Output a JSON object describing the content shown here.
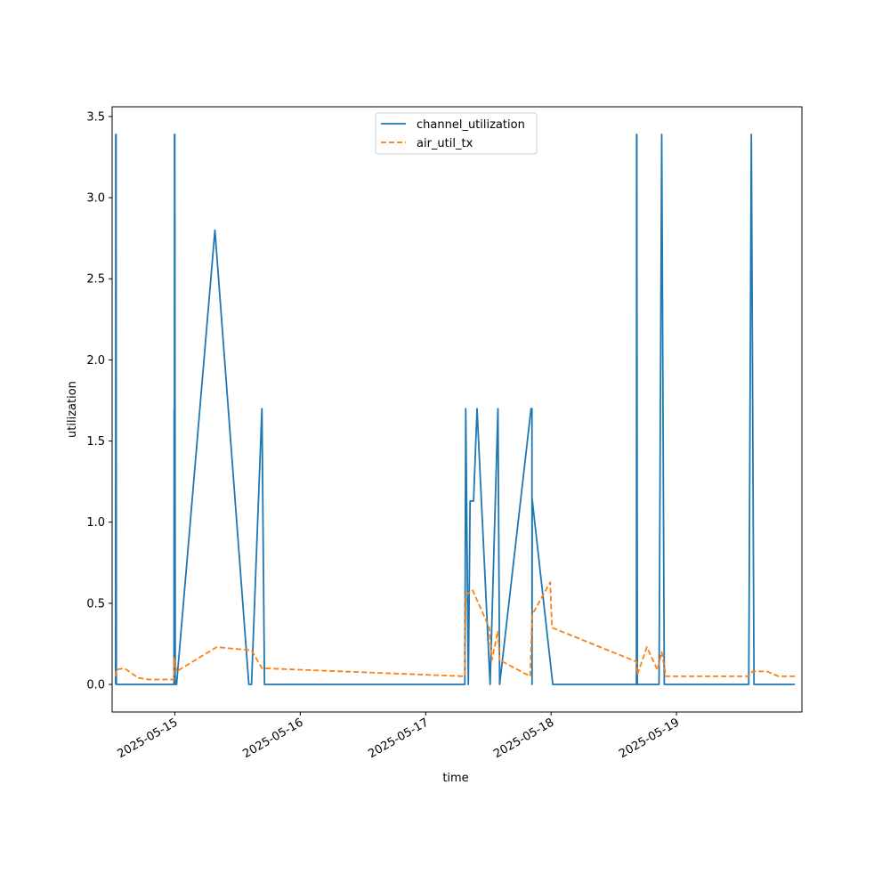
{
  "chart_data": {
    "type": "line",
    "xlabel": "time",
    "ylabel": "utilization",
    "xlim": [
      "2025-05-14 12:00",
      "2025-05-20 00:00"
    ],
    "ylim": [
      -0.17,
      3.56
    ],
    "x_ticks": [
      "2025-05-15",
      "2025-05-16",
      "2025-05-17",
      "2025-05-18",
      "2025-05-19"
    ],
    "y_ticks": [
      0.0,
      0.5,
      1.0,
      1.5,
      2.0,
      2.5,
      3.0,
      3.5
    ],
    "y_tick_labels": [
      "0.0",
      "0.5",
      "1.0",
      "1.5",
      "2.0",
      "2.5",
      "3.0",
      "3.5"
    ],
    "legend_position": "top-center",
    "grid": false,
    "series": [
      {
        "name": "channel_utilization",
        "color": "#1f77b4",
        "dash": "solid",
        "points": [
          [
            "2025-05-14 12:40",
            0.0
          ],
          [
            "2025-05-14 12:42",
            3.39
          ],
          [
            "2025-05-14 12:45",
            3.39
          ],
          [
            "2025-05-14 12:48",
            0.0
          ],
          [
            "2025-05-14 23:50",
            0.0
          ],
          [
            "2025-05-14 23:52",
            1.7
          ],
          [
            "2025-05-14 23:54",
            0.0
          ],
          [
            "2025-05-14 23:56",
            3.39
          ],
          [
            "2025-05-14 23:59",
            3.39
          ],
          [
            "2025-05-15 00:05",
            0.0
          ],
          [
            "2025-05-15 00:20",
            0.0
          ],
          [
            "2025-05-15 07:40",
            2.8
          ],
          [
            "2025-05-15 14:10",
            0.0
          ],
          [
            "2025-05-15 14:40",
            0.0
          ],
          [
            "2025-05-15 16:40",
            1.7
          ],
          [
            "2025-05-15 17:10",
            0.0
          ],
          [
            "2025-05-17 07:30",
            0.0
          ],
          [
            "2025-05-17 07:40",
            1.7
          ],
          [
            "2025-05-17 08:10",
            0.0
          ],
          [
            "2025-05-17 08:30",
            1.13
          ],
          [
            "2025-05-17 09:10",
            1.13
          ],
          [
            "2025-05-17 09:50",
            1.7
          ],
          [
            "2025-05-17 12:20",
            0.0
          ],
          [
            "2025-05-17 13:50",
            1.7
          ],
          [
            "2025-05-17 14:10",
            0.0
          ],
          [
            "2025-05-17 20:10",
            1.7
          ],
          [
            "2025-05-17 20:20",
            1.7
          ],
          [
            "2025-05-17 20:22",
            0.0
          ],
          [
            "2025-05-17 20:24",
            1.14
          ],
          [
            "2025-05-18 00:20",
            0.0
          ],
          [
            "2025-05-18 16:20",
            0.0
          ],
          [
            "2025-05-18 16:22",
            3.39
          ],
          [
            "2025-05-18 16:24",
            3.39
          ],
          [
            "2025-05-18 16:30",
            0.0
          ],
          [
            "2025-05-18 20:40",
            0.0
          ],
          [
            "2025-05-18 21:10",
            3.39
          ],
          [
            "2025-05-18 21:40",
            0.0
          ],
          [
            "2025-05-19 13:50",
            0.0
          ],
          [
            "2025-05-19 14:20",
            3.39
          ],
          [
            "2025-05-19 14:50",
            0.0
          ],
          [
            "2025-05-19 22:40",
            0.0
          ]
        ]
      },
      {
        "name": "air_util_tx",
        "color": "#ff7f0e",
        "dash": "dashed",
        "points": [
          [
            "2025-05-14 12:40",
            0.05
          ],
          [
            "2025-05-14 12:44",
            0.09
          ],
          [
            "2025-05-14 14:20",
            0.1
          ],
          [
            "2025-05-14 17:00",
            0.04
          ],
          [
            "2025-05-14 19:00",
            0.03
          ],
          [
            "2025-05-14 23:50",
            0.03
          ],
          [
            "2025-05-14 23:52",
            0.16
          ],
          [
            "2025-05-15 00:20",
            0.08
          ],
          [
            "2025-05-15 08:00",
            0.23
          ],
          [
            "2025-05-15 14:40",
            0.21
          ],
          [
            "2025-05-15 16:40",
            0.1
          ],
          [
            "2025-05-17 07:30",
            0.05
          ],
          [
            "2025-05-17 07:40",
            0.55
          ],
          [
            "2025-05-17 09:00",
            0.58
          ],
          [
            "2025-05-17 12:10",
            0.35
          ],
          [
            "2025-05-17 12:40",
            0.15
          ],
          [
            "2025-05-17 13:50",
            0.33
          ],
          [
            "2025-05-17 14:10",
            0.15
          ],
          [
            "2025-05-17 20:00",
            0.05
          ],
          [
            "2025-05-17 20:24",
            0.43
          ],
          [
            "2025-05-17 23:50",
            0.63
          ],
          [
            "2025-05-18 00:10",
            0.35
          ],
          [
            "2025-05-18 16:20",
            0.14
          ],
          [
            "2025-05-18 16:30",
            0.06
          ],
          [
            "2025-05-18 18:20",
            0.23
          ],
          [
            "2025-05-18 20:20",
            0.09
          ],
          [
            "2025-05-18 21:10",
            0.2
          ],
          [
            "2025-05-18 22:00",
            0.05
          ],
          [
            "2025-05-19 13:50",
            0.05
          ],
          [
            "2025-05-19 14:30",
            0.08
          ],
          [
            "2025-05-19 17:20",
            0.08
          ],
          [
            "2025-05-19 19:30",
            0.05
          ],
          [
            "2025-05-19 22:40",
            0.05
          ]
        ]
      }
    ]
  }
}
